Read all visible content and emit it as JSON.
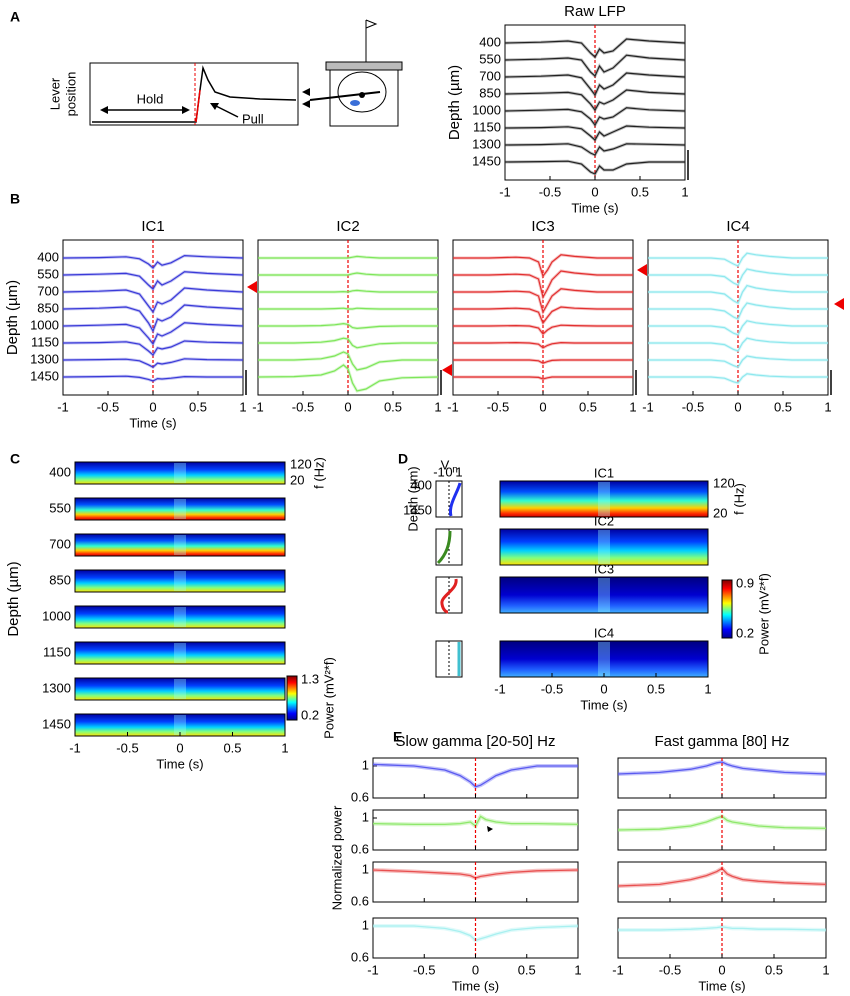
{
  "panel_labels": [
    "A",
    "B",
    "C",
    "D",
    "E"
  ],
  "schematic": {
    "ylabel": [
      "Lever",
      "position"
    ],
    "hold": "Hold",
    "pull": "Pull"
  },
  "chart_data": [
    {
      "type": "line",
      "title": "Raw LFP",
      "xlabel": "Time (s)",
      "ylabel": "Depth (µm)",
      "categories": [
        400,
        550,
        700,
        850,
        1000,
        1150,
        1300,
        1450
      ],
      "x": [
        -1,
        -0.6,
        -0.3,
        -0.15,
        -0.05,
        0,
        0.05,
        0.1,
        0.2,
        0.35,
        0.6,
        1
      ],
      "xlim": [
        -1,
        1
      ],
      "xticks": [
        -1,
        -0.5,
        0,
        0.5,
        1
      ],
      "event_time": 0,
      "series": [
        {
          "color": "#222222",
          "values": [
            0,
            0.02,
            0.05,
            0,
            -0.25,
            -0.35,
            -0.15,
            -0.25,
            -0.2,
            0.1,
            0.05,
            0
          ]
        },
        {
          "color": "#222222",
          "values": [
            0,
            0.02,
            0.05,
            0,
            -0.3,
            -0.4,
            -0.15,
            -0.3,
            -0.2,
            0.12,
            0.05,
            0
          ]
        },
        {
          "color": "#222222",
          "values": [
            0,
            0.02,
            0.05,
            -0.02,
            -0.3,
            -0.45,
            -0.2,
            -0.3,
            -0.2,
            0.1,
            0.05,
            0
          ]
        },
        {
          "color": "#222222",
          "values": [
            0,
            0.02,
            0.04,
            -0.02,
            -0.25,
            -0.4,
            -0.2,
            -0.25,
            -0.15,
            0.1,
            0.04,
            0
          ]
        },
        {
          "color": "#222222",
          "values": [
            0,
            0.02,
            0.04,
            -0.02,
            -0.2,
            -0.35,
            -0.15,
            -0.2,
            -0.15,
            0.08,
            0.03,
            0
          ]
        },
        {
          "color": "#222222",
          "values": [
            0,
            0.01,
            0.03,
            -0.02,
            -0.2,
            -0.3,
            -0.1,
            -0.2,
            -0.1,
            0.05,
            0.02,
            0
          ]
        },
        {
          "color": "#222222",
          "values": [
            0,
            0.01,
            0.03,
            -0.05,
            -0.2,
            -0.25,
            -0.05,
            -0.15,
            -0.1,
            0.03,
            0.02,
            0
          ]
        },
        {
          "color": "#222222",
          "values": [
            0,
            0.01,
            0.02,
            -0.05,
            -0.25,
            -0.3,
            -0.1,
            -0.2,
            -0.2,
            -0.05,
            0,
            0
          ]
        }
      ]
    },
    {
      "type": "line",
      "title": "IC1",
      "xlabel": "Time (s)",
      "ylabel": "Depth (µm)",
      "categories": [
        400,
        550,
        700,
        850,
        1000,
        1150,
        1300,
        1450
      ],
      "x": [
        -1,
        -0.6,
        -0.3,
        -0.15,
        -0.05,
        0,
        0.05,
        0.1,
        0.2,
        0.35,
        0.6,
        1
      ],
      "xlim": [
        -1,
        1
      ],
      "xticks": [
        -1,
        -0.5,
        0,
        0.5,
        1
      ],
      "event_time": 0,
      "series": [
        {
          "color": "#3a3ad8",
          "values": [
            0,
            0.01,
            0.03,
            -0.02,
            -0.15,
            -0.25,
            -0.1,
            -0.18,
            -0.12,
            0.06,
            0.03,
            0
          ]
        },
        {
          "color": "#3a3ad8",
          "values": [
            0,
            0.02,
            0.04,
            -0.03,
            -0.25,
            -0.35,
            -0.15,
            -0.25,
            -0.15,
            0.08,
            0.04,
            0
          ]
        },
        {
          "color": "#3a3ad8",
          "values": [
            0,
            0.02,
            0.05,
            -0.05,
            -0.35,
            -0.5,
            -0.25,
            -0.3,
            -0.2,
            0.1,
            0.05,
            0
          ]
        },
        {
          "color": "#3a3ad8",
          "values": [
            0,
            0.02,
            0.05,
            -0.05,
            -0.35,
            -0.55,
            -0.25,
            -0.3,
            -0.2,
            0.1,
            0.05,
            0
          ]
        },
        {
          "color": "#3a3ad8",
          "values": [
            0,
            0.02,
            0.04,
            -0.05,
            -0.3,
            -0.45,
            -0.2,
            -0.25,
            -0.15,
            0.08,
            0.04,
            0
          ]
        },
        {
          "color": "#3a3ad8",
          "values": [
            0,
            0.01,
            0.03,
            -0.03,
            -0.2,
            -0.3,
            -0.12,
            -0.15,
            -0.1,
            0.05,
            0.02,
            0
          ]
        },
        {
          "color": "#3a3ad8",
          "values": [
            0,
            0.01,
            0.02,
            -0.02,
            -0.12,
            -0.18,
            -0.08,
            -0.1,
            -0.06,
            0.03,
            0.01,
            0
          ]
        },
        {
          "color": "#3a3ad8",
          "values": [
            0,
            0.01,
            0.02,
            -0.01,
            -0.06,
            -0.1,
            -0.04,
            -0.05,
            -0.03,
            0.01,
            0,
            0
          ]
        }
      ]
    },
    {
      "type": "line",
      "title": "IC2",
      "x": [
        -1,
        -0.6,
        -0.3,
        -0.15,
        -0.05,
        0,
        0.05,
        0.1,
        0.2,
        0.35,
        0.6,
        1
      ],
      "xlim": [
        -1,
        1
      ],
      "xticks": [
        -1,
        -0.5,
        0,
        0.5,
        1
      ],
      "event_time": 0,
      "series": [
        {
          "color": "#7ee65a",
          "values": [
            0,
            0,
            0,
            0,
            0,
            0,
            0.02,
            0.04,
            0.02,
            0,
            0,
            0
          ]
        },
        {
          "color": "#7ee65a",
          "values": [
            0,
            0,
            0,
            0,
            0,
            0,
            0.03,
            0.05,
            0.02,
            0,
            0,
            0
          ]
        },
        {
          "color": "#7ee65a",
          "values": [
            0,
            0,
            0,
            0,
            0.01,
            0,
            0.03,
            0.04,
            0.02,
            0,
            0,
            0
          ]
        },
        {
          "color": "#7ee65a",
          "values": [
            0,
            0,
            0,
            0.01,
            0.02,
            0,
            0,
            0.02,
            0.01,
            0,
            0,
            0
          ]
        },
        {
          "color": "#7ee65a",
          "values": [
            0,
            0,
            0.01,
            0.03,
            0.06,
            0.04,
            -0.04,
            -0.06,
            -0.04,
            -0.01,
            0,
            0
          ]
        },
        {
          "color": "#7ee65a",
          "values": [
            0,
            0,
            0.02,
            0.06,
            0.12,
            0.1,
            -0.06,
            -0.12,
            -0.08,
            -0.02,
            0,
            0
          ]
        },
        {
          "color": "#7ee65a",
          "values": [
            0,
            0,
            0.03,
            0.1,
            0.2,
            0.15,
            -0.1,
            -0.25,
            -0.2,
            -0.05,
            0,
            0
          ]
        },
        {
          "color": "#7ee65a",
          "values": [
            0,
            0.01,
            0.05,
            0.15,
            0.3,
            0.2,
            -0.15,
            -0.35,
            -0.3,
            -0.1,
            -0.02,
            0
          ]
        }
      ]
    },
    {
      "type": "line",
      "title": "IC3",
      "x": [
        -1,
        -0.6,
        -0.3,
        -0.15,
        -0.05,
        0,
        0.05,
        0.1,
        0.2,
        0.35,
        0.6,
        1
      ],
      "xlim": [
        -1,
        1
      ],
      "xticks": [
        -1,
        -0.5,
        0,
        0.5,
        1
      ],
      "event_time": 0,
      "series": [
        {
          "color": "#e23030",
          "values": [
            0,
            0,
            0.02,
            0,
            -0.1,
            -0.45,
            -0.3,
            -0.1,
            0.08,
            0.04,
            0,
            0
          ]
        },
        {
          "color": "#e23030",
          "values": [
            0,
            0,
            0.02,
            0,
            -0.1,
            -0.55,
            -0.35,
            -0.12,
            0.1,
            0.05,
            0,
            0
          ]
        },
        {
          "color": "#e23030",
          "values": [
            0,
            0,
            0.02,
            0,
            -0.1,
            -0.5,
            -0.3,
            -0.1,
            0.08,
            0.04,
            0,
            0
          ]
        },
        {
          "color": "#e23030",
          "values": [
            0,
            0,
            0.02,
            0,
            -0.08,
            -0.35,
            -0.2,
            -0.06,
            0.05,
            0.02,
            0,
            0
          ]
        },
        {
          "color": "#e23030",
          "values": [
            0,
            0,
            0.01,
            0,
            -0.05,
            -0.2,
            -0.1,
            -0.03,
            0.02,
            0.01,
            0,
            0
          ]
        },
        {
          "color": "#e23030",
          "values": [
            0,
            0,
            0.01,
            0,
            -0.03,
            -0.12,
            -0.06,
            -0.02,
            0.01,
            0,
            0,
            0
          ]
        },
        {
          "color": "#e23030",
          "values": [
            0,
            0,
            0,
            0,
            -0.02,
            -0.08,
            -0.04,
            -0.01,
            0,
            0,
            0,
            0
          ]
        },
        {
          "color": "#e23030",
          "values": [
            0,
            0,
            0,
            0,
            -0.01,
            -0.05,
            -0.02,
            0,
            0,
            0,
            0,
            0
          ]
        }
      ]
    },
    {
      "type": "line",
      "title": "IC4",
      "x": [
        -1,
        -0.6,
        -0.3,
        -0.15,
        -0.05,
        0,
        0.05,
        0.1,
        0.2,
        0.35,
        0.6,
        1
      ],
      "xlim": [
        -1,
        1
      ],
      "xticks": [
        -1,
        -0.5,
        0,
        0.5,
        1
      ],
      "event_time": 0,
      "series": [
        {
          "color": "#8ee8ee",
          "values": [
            0,
            0,
            0,
            -0.03,
            -0.15,
            -0.2,
            0,
            0.12,
            0.08,
            0.04,
            0,
            0
          ]
        },
        {
          "color": "#8ee8ee",
          "values": [
            0,
            0,
            0,
            -0.04,
            -0.2,
            -0.25,
            0,
            0.15,
            0.1,
            0.05,
            0,
            0
          ]
        },
        {
          "color": "#8ee8ee",
          "values": [
            0,
            0,
            0,
            -0.05,
            -0.22,
            -0.28,
            0,
            0.16,
            0.1,
            0.05,
            0,
            0
          ]
        },
        {
          "color": "#8ee8ee",
          "values": [
            0,
            0,
            0,
            -0.05,
            -0.2,
            -0.25,
            0,
            0.15,
            0.1,
            0.05,
            0,
            0
          ]
        },
        {
          "color": "#8ee8ee",
          "values": [
            0,
            0,
            0,
            -0.04,
            -0.18,
            -0.22,
            0,
            0.13,
            0.08,
            0.04,
            0,
            0
          ]
        },
        {
          "color": "#8ee8ee",
          "values": [
            0,
            0,
            0,
            -0.04,
            -0.16,
            -0.2,
            0,
            0.12,
            0.07,
            0.03,
            0,
            0
          ]
        },
        {
          "color": "#8ee8ee",
          "values": [
            0,
            0,
            0,
            -0.03,
            -0.14,
            -0.18,
            0,
            0.1,
            0.06,
            0.03,
            0,
            0
          ]
        },
        {
          "color": "#8ee8ee",
          "values": [
            0,
            0,
            0,
            -0.03,
            -0.12,
            -0.15,
            0,
            0.08,
            0.05,
            0.02,
            0,
            0
          ]
        }
      ]
    },
    {
      "type": "heatmap",
      "xlabel": "Time (s)",
      "depth_label": "Depth (µm)",
      "categories": [
        400,
        550,
        700,
        850,
        1000,
        1150,
        1300,
        1450
      ],
      "yticks": [
        120,
        20
      ],
      "ylabel": "f (Hz)",
      "xlim": [
        -1,
        1
      ],
      "xticks": [
        -1,
        -0.5,
        0,
        0.5,
        1
      ],
      "colorbar": {
        "ticks": [
          1.3,
          0.2
        ],
        "label": "Power (mV²*f)"
      }
    },
    {
      "type": "heatmap",
      "xlabel": "Time (s)",
      "depth_label": "Depth (µm)",
      "categories": [
        "IC1",
        "IC2",
        "IC3",
        "IC4"
      ],
      "yticks": [
        120,
        20
      ],
      "ylabel": "f (Hz)",
      "depth_ticks": [
        400,
        1450
      ],
      "vn_label": "V",
      "vn_subscript": "n",
      "vn_ticks": [
        -1,
        0,
        1
      ],
      "xlim": [
        -1,
        1
      ],
      "xticks": [
        -1,
        -0.5,
        0,
        0.5,
        1
      ],
      "colorbar": {
        "ticks": [
          0.9,
          0.2
        ],
        "label": "Power (mV²*f)"
      }
    },
    {
      "type": "line",
      "title": "Slow gamma [20-50] Hz",
      "xlabel": "Time (s)",
      "ylabel": "Normalized power",
      "ylim": [
        0.6,
        1.1
      ],
      "yticks": [
        1,
        0.6
      ],
      "x": [
        -1,
        -0.6,
        -0.3,
        -0.15,
        -0.05,
        0,
        0.05,
        0.1,
        0.2,
        0.35,
        0.6,
        1
      ],
      "xlim": [
        -1,
        1
      ],
      "xticks": [
        -1,
        -0.5,
        0,
        0.5,
        1
      ],
      "event_time": 0,
      "series": [
        {
          "color": "#5a5af0",
          "values": [
            1.02,
            1.0,
            0.95,
            0.88,
            0.8,
            0.74,
            0.76,
            0.8,
            0.88,
            0.95,
            1.0,
            1.0
          ]
        },
        {
          "color": "#8ee86b",
          "values": [
            0.93,
            0.92,
            0.92,
            0.93,
            0.95,
            0.9,
            1.02,
            0.98,
            0.95,
            0.93,
            0.93,
            0.92
          ]
        },
        {
          "color": "#e85050",
          "values": [
            1.0,
            0.98,
            0.96,
            0.95,
            0.93,
            0.9,
            0.92,
            0.93,
            0.95,
            0.97,
            0.99,
            1.0
          ]
        },
        {
          "color": "#a8f0f0",
          "values": [
            1.0,
            1.0,
            0.97,
            0.93,
            0.88,
            0.82,
            0.84,
            0.86,
            0.9,
            0.95,
            0.98,
            1.0
          ]
        }
      ]
    },
    {
      "type": "line",
      "title": "Fast gamma [80] Hz",
      "xlabel": "Time (s)",
      "ylim": [
        0.6,
        1.1
      ],
      "x": [
        -1,
        -0.6,
        -0.3,
        -0.15,
        -0.05,
        0,
        0.05,
        0.1,
        0.2,
        0.35,
        0.6,
        1
      ],
      "xlim": [
        -1,
        1
      ],
      "xticks": [
        -1,
        -0.5,
        0,
        0.5,
        1
      ],
      "event_time": 0,
      "series": [
        {
          "color": "#5a5af0",
          "values": [
            0.9,
            0.92,
            0.96,
            1.0,
            1.04,
            1.05,
            1.02,
            1.0,
            0.97,
            0.95,
            0.92,
            0.9
          ]
        },
        {
          "color": "#8ee86b",
          "values": [
            0.85,
            0.86,
            0.9,
            0.95,
            1.0,
            1.02,
            0.97,
            0.95,
            0.93,
            0.9,
            0.88,
            0.87
          ]
        },
        {
          "color": "#e85050",
          "values": [
            0.8,
            0.82,
            0.88,
            0.93,
            0.98,
            1.02,
            0.95,
            0.92,
            0.88,
            0.86,
            0.84,
            0.82
          ]
        },
        {
          "color": "#a8f0f0",
          "values": [
            0.95,
            0.95,
            0.96,
            0.97,
            0.98,
            0.99,
            0.98,
            0.97,
            0.97,
            0.96,
            0.96,
            0.95
          ]
        }
      ]
    }
  ]
}
